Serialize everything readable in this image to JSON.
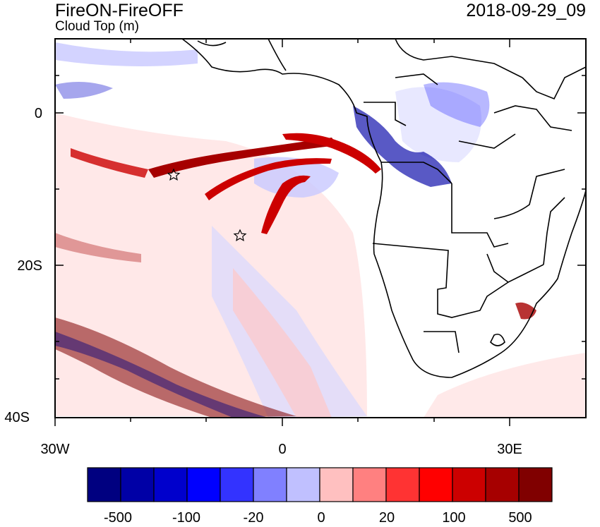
{
  "header": {
    "title": "FireON-FireOFF",
    "subtitle": "Cloud Top (m)",
    "timestamp": "2018-09-29_09"
  },
  "axes": {
    "y_labels": [
      "0",
      "20S",
      "40S"
    ],
    "x_labels": [
      "30W",
      "0",
      "30E"
    ]
  },
  "colorbar": {
    "labels": [
      "-500",
      "-100",
      "-20",
      "0",
      "20",
      "100",
      "500"
    ],
    "colors": [
      "#000080",
      "#0000a6",
      "#0000cc",
      "#0000ff",
      "#3333ff",
      "#8080ff",
      "#c0c0ff",
      "#ffc0c0",
      "#ff8080",
      "#ff3333",
      "#ff0000",
      "#cc0000",
      "#a60000",
      "#800000"
    ]
  },
  "markers": [
    {
      "name": "star-marker",
      "lon": -14.5,
      "lat": -8.0
    },
    {
      "name": "star-marker",
      "lon": -5.5,
      "lat": -16.0
    }
  ]
}
